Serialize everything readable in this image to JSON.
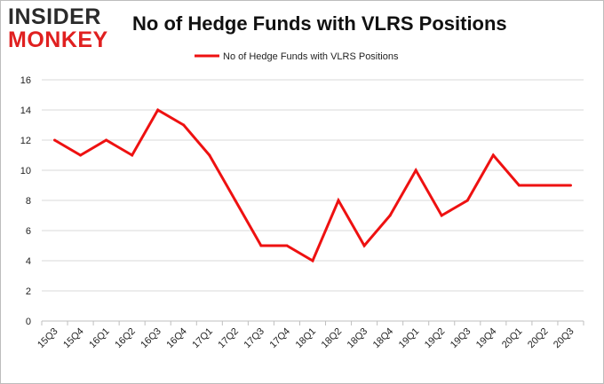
{
  "logo": {
    "top_text": "INSIDER",
    "bottom_text": "MONKEY"
  },
  "colors": {
    "series": "#ee1111",
    "grid": "#d9d9d9",
    "axis": "#bfbfbf",
    "text": "#222222",
    "logo_dark": "#2b2b2b",
    "logo_red": "#e02020"
  },
  "chart_data": {
    "type": "line",
    "title": "No of Hedge Funds with VLRS Positions",
    "xlabel": "",
    "ylabel": "",
    "ylim": [
      0,
      16
    ],
    "yticks": [
      0,
      2,
      4,
      6,
      8,
      10,
      12,
      14,
      16
    ],
    "grid": true,
    "legend_position": "top-center",
    "categories": [
      "15Q3",
      "15Q4",
      "16Q1",
      "16Q2",
      "16Q3",
      "16Q4",
      "17Q1",
      "17Q2",
      "17Q3",
      "17Q4",
      "18Q1",
      "18Q2",
      "18Q3",
      "18Q4",
      "19Q1",
      "19Q2",
      "19Q3",
      "19Q4",
      "20Q1",
      "20Q2",
      "20Q3"
    ],
    "series": [
      {
        "name": "No of Hedge Funds with VLRS Positions",
        "values": [
          12,
          11,
          12,
          11,
          14,
          13,
          11,
          8,
          5,
          5,
          4,
          8,
          5,
          7,
          10,
          7,
          8,
          11,
          9,
          9,
          9
        ]
      }
    ]
  }
}
